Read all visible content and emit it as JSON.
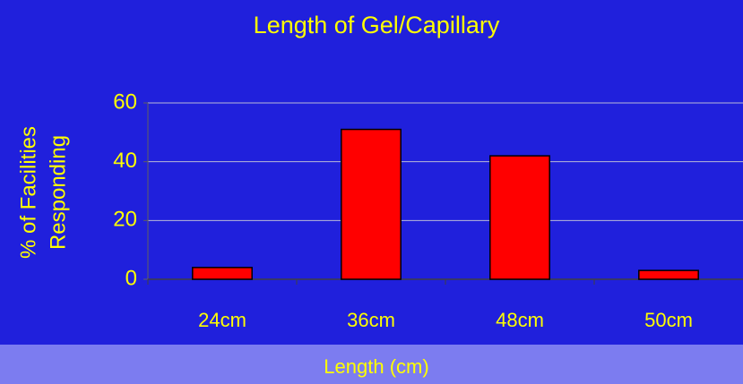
{
  "chart_data": {
    "type": "bar",
    "title": "Length of Gel/Capillary",
    "y_label_lines": [
      "% of Facilities",
      "Responding"
    ],
    "x_label": "Length (cm)",
    "categories": [
      "24cm",
      "36cm",
      "48cm",
      "50cm"
    ],
    "values": [
      4,
      51,
      42,
      3
    ],
    "color": "#ff0000",
    "ylim": [
      0,
      60
    ],
    "yticks": [
      0,
      20,
      40,
      60
    ],
    "grid": true
  }
}
